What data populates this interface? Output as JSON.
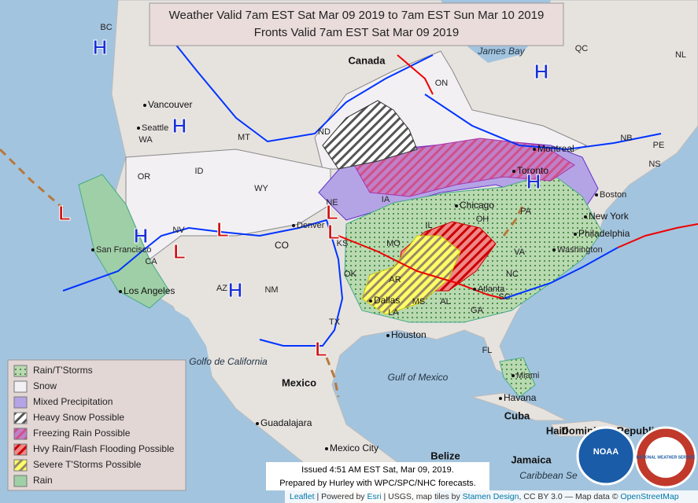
{
  "title": [
    "Weather Valid 7am EST Sat Mar 09 2019 to 7am EST Sun Mar 10 2019",
    "Fronts Valid 7am EST Sat Mar 09 2019"
  ],
  "legend": [
    "Rain/T'Storms",
    "Snow",
    "Mixed Precipitation",
    "Heavy Snow Possible",
    "Freezing Rain Possible",
    "Hvy Rain/Flash Flooding Possible",
    "Severe T'Storms Possible",
    "Rain"
  ],
  "issued": [
    "Issued 4:51 AM EST Sat, Mar 09, 2019.",
    "Prepared by Hurley with WPC/SPC/NHC forecasts."
  ],
  "attribution": [
    "Leaflet",
    "| Powered by",
    "Esri",
    "| USGS, map tiles by",
    "Stamen Design",
    ", CC BY 3.0",
    "— Map data ©",
    "OpenStreetMap"
  ],
  "pressure_centers": [
    "H",
    "H",
    "H",
    "H",
    "H",
    "H",
    "L",
    "L",
    "L",
    "L",
    "L",
    "L"
  ],
  "labels": [
    "BC",
    "Canada",
    "James Bay",
    "QC",
    "NL",
    "ON",
    "Vancouver",
    "Seattle",
    "WA",
    "MT",
    "ND",
    "NB",
    "PE",
    "NS",
    "OR",
    "ID",
    "WY",
    "Montreal",
    "Toronto",
    "Boston",
    "Chicago",
    "New York",
    "IA",
    "IL",
    "OH",
    "PA",
    "NE",
    "Denver",
    "NV",
    "CO",
    "San Francisco",
    "CA",
    "Philadelphia",
    "KS",
    "MO",
    "Washington",
    "VA",
    "AZ",
    "NM",
    "OK",
    "AR",
    "NC",
    "Los Angeles",
    "Atlanta",
    "SC",
    "Dallas",
    "MS",
    "AL",
    "GA",
    "LA",
    "TX",
    "Houston",
    "FL",
    "Golfo de California",
    "Gulf of Mexico",
    "Mexico",
    "Miami",
    "Havana",
    "Cuba",
    "Guadalajara",
    "Haiti",
    "Dominican Republic",
    "Mexico City",
    "Belize",
    "Jamaica",
    "Caribbean Se"
  ],
  "logos": [
    "NOAA",
    "NATIONAL WEATHER SERVICE"
  ]
}
